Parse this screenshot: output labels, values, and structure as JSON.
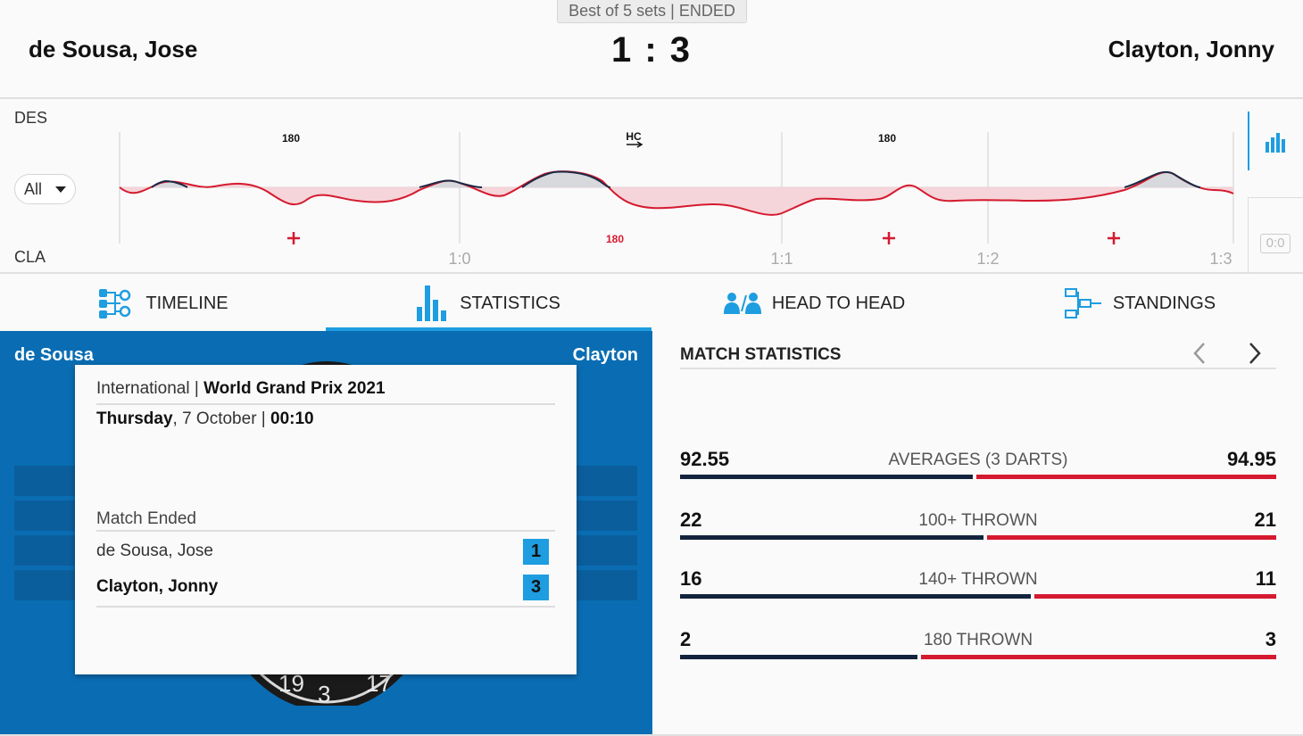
{
  "header": {
    "format": "Best of 5 sets | ENDED",
    "player_left": "de Sousa, Jose",
    "player_right": "Clayton, Jonny",
    "score": "1 : 3"
  },
  "momentum": {
    "top_abbr": "DES",
    "bottom_abbr": "CLA",
    "filter_value": "All",
    "top_markers": [
      "180",
      "HC",
      "180"
    ],
    "bottom_marker_text": "180",
    "checkpoints": [
      "1:0",
      "1:1",
      "1:2",
      "1:3"
    ],
    "idle_score": "0:0",
    "colors": {
      "home_fill": "#dcdde0",
      "away_fill": "#f6d6da",
      "away_line": "#d51a2f",
      "home_line": "#1b2a45"
    }
  },
  "tabs": [
    {
      "label": "TIMELINE",
      "icon": "timeline-icon"
    },
    {
      "label": "STATISTICS",
      "icon": "statistics-icon",
      "active": true
    },
    {
      "label": "HEAD TO HEAD",
      "icon": "head-to-head-icon"
    },
    {
      "label": "STANDINGS",
      "icon": "standings-icon"
    }
  ],
  "board": {
    "left_name": "de Sousa",
    "right_name": "Clayton",
    "visible_numbers": [
      "19",
      "3",
      "17"
    ]
  },
  "info_card": {
    "competition_prefix": "International | ",
    "competition": "World Grand Prix 2021",
    "day": "Thursday",
    "date": ", 7 October | ",
    "time": "00:10",
    "status": "Match Ended",
    "players": [
      {
        "name": "de Sousa, Jose",
        "sets": "1"
      },
      {
        "name": "Clayton, Jonny",
        "sets": "3"
      }
    ]
  },
  "match_statistics": {
    "title": "MATCH STATISTICS",
    "rows": [
      {
        "label": "AVERAGES (3 DARTS)",
        "left": "92.55",
        "right": "94.95",
        "left_value": 92.55,
        "right_value": 94.95
      },
      {
        "label": "100+ THROWN",
        "left": "22",
        "right": "21",
        "left_value": 22,
        "right_value": 21
      },
      {
        "label": "140+ THROWN",
        "left": "16",
        "right": "11",
        "left_value": 16,
        "right_value": 11
      },
      {
        "label": "180 THROWN",
        "left": "2",
        "right": "3",
        "left_value": 2,
        "right_value": 3
      }
    ]
  }
}
